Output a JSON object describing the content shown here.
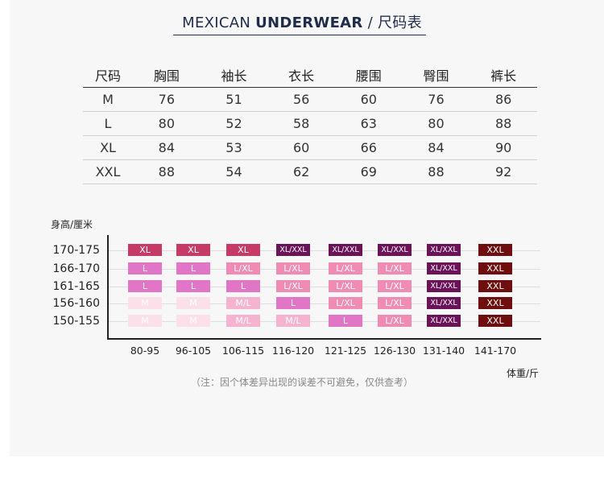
{
  "title": {
    "light": "MEXICAN ",
    "bold": "UNDERWEAR",
    "suffix": " /  尺码表"
  },
  "size_table": {
    "headers": [
      "尺码",
      "胸围",
      "袖长",
      "衣长",
      "腰围",
      "臀围",
      "裤长"
    ],
    "rows": [
      [
        "M",
        "76",
        "51",
        "56",
        "60",
        "76",
        "86"
      ],
      [
        "L",
        "80",
        "52",
        "58",
        "63",
        "80",
        "88"
      ],
      [
        "XL",
        "84",
        "53",
        "60",
        "66",
        "84",
        "90"
      ],
      [
        "XXL",
        "88",
        "54",
        "62",
        "69",
        "88",
        "92"
      ]
    ]
  },
  "grid": {
    "y_label": "身高/厘米",
    "x_label": "体重/斤",
    "heights": [
      "170-175",
      "166-170",
      "161-165",
      "156-160",
      "150-155"
    ],
    "weights": [
      "80-95",
      "96-105",
      "106-115",
      "116-120",
      "121-125",
      "126-130",
      "131-140",
      "141-170"
    ],
    "cells": [
      [
        "XL",
        "XL",
        "XL",
        "XL/XXL",
        "XL/XXL",
        "XL/XXL",
        "XL/XXL",
        "XXL"
      ],
      [
        "L",
        "L",
        "L/XL",
        "L/XL",
        "L/XL",
        "L/XL",
        "XL/XXL",
        "XXL"
      ],
      [
        "L",
        "L",
        "L",
        "L/XL",
        "L/XL",
        "L/XL",
        "XL/XXL",
        "XXL"
      ],
      [
        "M",
        "M",
        "M/L",
        "L",
        "L/XL",
        "L/XL",
        "XL/XXL",
        "XXL"
      ],
      [
        "M",
        "M",
        "M/L",
        "M/L",
        "L",
        "L/XL",
        "XL/XXL",
        "XXL"
      ]
    ],
    "colors": {
      "XL": "#c63a66",
      "XL/XXL": "#6a1358",
      "XXL": "#6e0e0e",
      "L": "#e276c6",
      "L/XL": "#f08bb3",
      "M/L": "#f5b3cf",
      "M": "#fbe0ea"
    }
  },
  "note": "（注：因个体差异出现的误差不可避免，仅供查考）"
}
